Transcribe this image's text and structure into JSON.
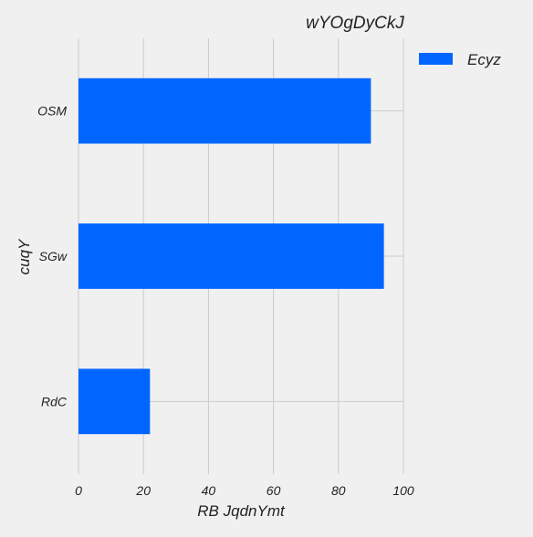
{
  "chart_data": {
    "type": "bar",
    "orientation": "horizontal",
    "title": "wYOgDyCkJ",
    "xlabel": "RB JqdnYmt",
    "ylabel": "cuqY",
    "categories": [
      "OSM",
      "SGw",
      "RdC"
    ],
    "series": [
      {
        "name": "Ecyz",
        "values": [
          90,
          94,
          22
        ],
        "color": "#0066ff"
      }
    ],
    "xlim": [
      0,
      100
    ],
    "xticks": [
      0,
      20,
      40,
      60,
      80,
      100
    ],
    "grid": true,
    "legend_position": "top-right"
  },
  "colors": {
    "background": "#f0f0f0",
    "grid": "#cbcbcb",
    "text": "#222222",
    "bar": "#0066ff"
  }
}
